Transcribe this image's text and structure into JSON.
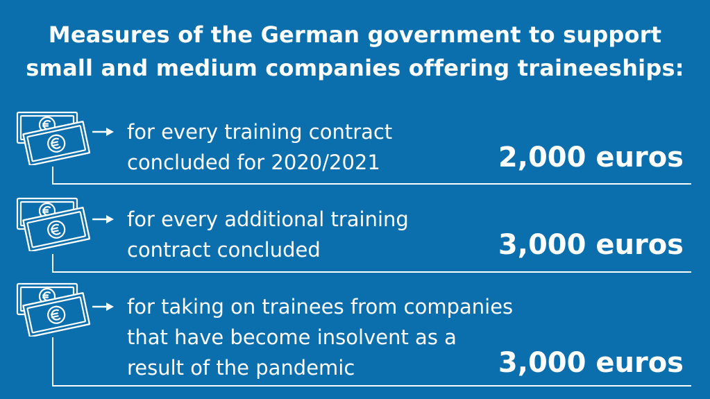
{
  "title": {
    "line1": "Measures of the German government to support",
    "line2": "small and medium companies offering traineeships:"
  },
  "items": [
    {
      "desc_lines": [
        "for every training contract",
        "concluded for 2020/2021"
      ],
      "amount": "2,000 euros",
      "icon": "banknotes-euro-icon"
    },
    {
      "desc_lines": [
        "for every additional training",
        "contract concluded"
      ],
      "amount": "3,000 euros",
      "icon": "banknotes-euro-icon"
    },
    {
      "desc_lines": [
        "for taking on trainees from companies",
        "that have become insolvent as a",
        "result of the pandemic"
      ],
      "amount": "3,000 euros",
      "icon": "banknotes-euro-icon"
    }
  ],
  "colors": {
    "background": "#0b6fae",
    "foreground": "#ffffff"
  }
}
